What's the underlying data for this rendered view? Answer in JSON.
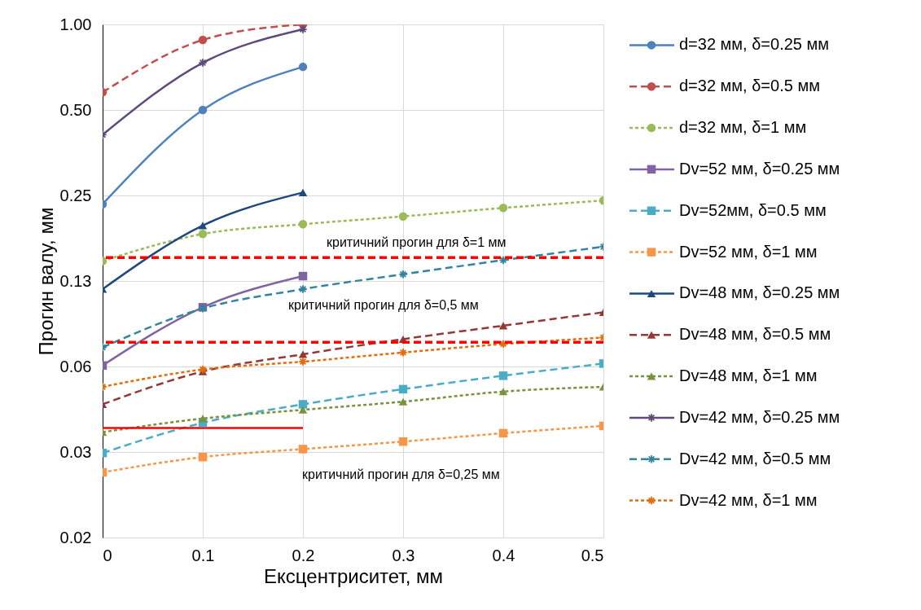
{
  "chart_data": {
    "type": "line",
    "xlabel": "Ексцентриситет, мм",
    "ylabel": "Прогин валу, мм",
    "log": true,
    "grid": true,
    "legend": "right",
    "x": [
      0,
      0.1,
      0.2,
      0.3,
      0.4,
      0.5
    ],
    "xlim": [
      0,
      0.5
    ],
    "xticks": [
      0,
      0.1,
      0.2,
      0.3,
      0.4,
      0.5
    ],
    "ylim": [
      0.015625,
      1
    ],
    "yticks": [
      {
        "value": 0.015625,
        "label": "0.02"
      },
      {
        "value": 0.03125,
        "label": "0.03"
      },
      {
        "value": 0.0625,
        "label": "0.06"
      },
      {
        "value": 0.125,
        "label": "0.13"
      },
      {
        "value": 0.25,
        "label": "0.25"
      },
      {
        "value": 0.5,
        "label": "0.50"
      },
      {
        "value": 1,
        "label": "1.00"
      }
    ],
    "series": [
      {
        "name": "d=32 мм, δ=0.25 мм",
        "color": "#4f81bd",
        "marker": "circle",
        "line_style": "solid",
        "x": [
          0,
          0.1,
          0.2
        ],
        "values": [
          0.233,
          0.5,
          0.709
        ]
      },
      {
        "name": "d=32 мм, δ=0.5 мм",
        "color": "#c0504d",
        "marker": "circle",
        "line_style": "dashed",
        "x": [
          0,
          0.1,
          0.2
        ],
        "values": [
          0.577,
          0.882,
          1.0
        ]
      },
      {
        "name": "d=32 мм, δ=1 мм",
        "color": "#9bbb59",
        "marker": "circle",
        "line_style": "dotted",
        "values": [
          0.147,
          0.183,
          0.198,
          0.211,
          0.226,
          0.24
        ]
      },
      {
        "name": "Dv=52 мм, δ=0.25 мм",
        "color": "#8064a2",
        "marker": "square",
        "line_style": "solid",
        "x": [
          0,
          0.1,
          0.2
        ],
        "values": [
          0.063,
          0.101,
          0.13
        ]
      },
      {
        "name": "Dv=52мм, δ=0.5 мм",
        "color": "#4bacc6",
        "marker": "square",
        "line_style": "dashed",
        "values": [
          0.031,
          0.0396,
          0.046,
          0.052,
          0.058,
          0.064
        ]
      },
      {
        "name": "Dv=52 мм, δ=1 мм",
        "color": "#f79646",
        "marker": "square",
        "line_style": "dotted",
        "values": [
          0.0265,
          0.03,
          0.032,
          0.034,
          0.0364,
          0.0386
        ]
      },
      {
        "name": "Dv=48 мм, δ=0.25 мм",
        "color": "#1f497d",
        "marker": "triangle",
        "line_style": "solid",
        "x": [
          0,
          0.1,
          0.2
        ],
        "values": [
          0.117,
          0.196,
          0.256
        ]
      },
      {
        "name": "Dv=48 мм, δ=0.5 мм",
        "color": "#953735",
        "marker": "triangle",
        "line_style": "dashed",
        "values": [
          0.046,
          0.06,
          0.069,
          0.078,
          0.087,
          0.097
        ]
      },
      {
        "name": "Dv=48 мм, δ=1 мм",
        "color": "#77933c",
        "marker": "triangle",
        "line_style": "dotted",
        "values": [
          0.0367,
          0.041,
          0.044,
          0.047,
          0.051,
          0.053
        ]
      },
      {
        "name": "Dv=42 мм, δ=0.25 мм",
        "color": "#604a7b",
        "marker": "cross",
        "line_style": "solid",
        "x": [
          0,
          0.1,
          0.2
        ],
        "values": [
          0.409,
          0.733,
          0.961
        ]
      },
      {
        "name": "Dv=42 мм, δ=0.5 мм",
        "color": "#31859c",
        "marker": "cross",
        "line_style": "dashed",
        "values": [
          0.073,
          0.1,
          0.117,
          0.132,
          0.148,
          0.165
        ]
      },
      {
        "name": "Dv=42 мм, δ=1 мм",
        "color": "#e46c0a",
        "marker": "cross",
        "line_style": "dotted",
        "values": [
          0.053,
          0.061,
          0.065,
          0.07,
          0.075,
          0.079
        ]
      },
      {
        "color": "#ff0000",
        "marker": "none",
        "line_style": "solid",
        "x": [
          0,
          0.2
        ],
        "values": [
          0.038,
          0.038
        ]
      }
    ],
    "ref_lines": [
      {
        "axis": "y",
        "value": 0.151,
        "color": "#ff0000",
        "line_style": "dashed"
      },
      {
        "axis": "y",
        "value": 0.076,
        "color": "#ff0000",
        "line_style": "dashed"
      }
    ],
    "annotations": [
      "критичний прогин для δ=1 мм",
      "критичний прогин для δ=0,5 мм",
      "критичний прогин для δ=0,25 мм"
    ]
  }
}
